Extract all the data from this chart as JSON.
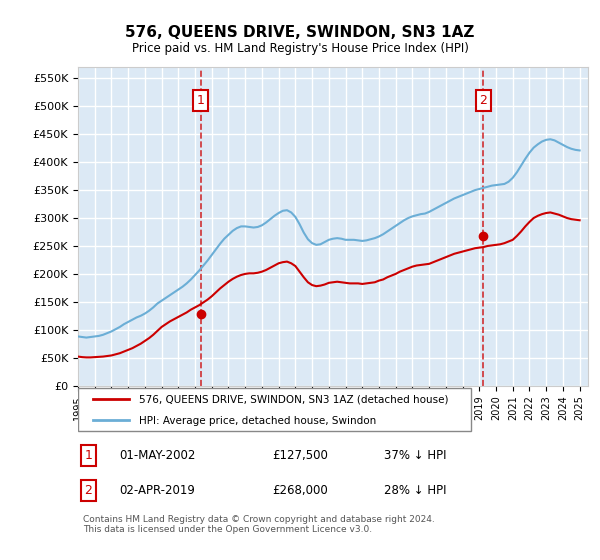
{
  "title": "576, QUEENS DRIVE, SWINDON, SN3 1AZ",
  "subtitle": "Price paid vs. HM Land Registry's House Price Index (HPI)",
  "ylabel_ticks": [
    "£0",
    "£50K",
    "£100K",
    "£150K",
    "£200K",
    "£250K",
    "£300K",
    "£350K",
    "£400K",
    "£450K",
    "£500K",
    "£550K"
  ],
  "ylim": [
    0,
    570000
  ],
  "xlim_start": 1995.0,
  "xlim_end": 2025.5,
  "xticks": [
    1995,
    1996,
    1997,
    1998,
    1999,
    2000,
    2001,
    2002,
    2003,
    2004,
    2005,
    2006,
    2007,
    2008,
    2009,
    2010,
    2011,
    2012,
    2013,
    2014,
    2015,
    2016,
    2017,
    2018,
    2019,
    2020,
    2021,
    2022,
    2023,
    2024,
    2025
  ],
  "hpi_color": "#6baed6",
  "price_color": "#cc0000",
  "dashed_line_color": "#cc0000",
  "background_color": "#dce9f5",
  "grid_color": "#ffffff",
  "annotation_box_color": "#cc0000",
  "sale1_x": 2002.33,
  "sale1_y": 127500,
  "sale1_label": "1",
  "sale2_x": 2019.25,
  "sale2_y": 268000,
  "sale2_label": "2",
  "legend_line1": "576, QUEENS DRIVE, SWINDON, SN3 1AZ (detached house)",
  "legend_line2": "HPI: Average price, detached house, Swindon",
  "table_row1": [
    "1",
    "01-MAY-2002",
    "£127,500",
    "37% ↓ HPI"
  ],
  "table_row2": [
    "2",
    "02-APR-2019",
    "£268,000",
    "28% ↓ HPI"
  ],
  "footer": "Contains HM Land Registry data © Crown copyright and database right 2024.\nThis data is licensed under the Open Government Licence v3.0.",
  "hpi_data_x": [
    1995.0,
    1995.25,
    1995.5,
    1995.75,
    1996.0,
    1996.25,
    1996.5,
    1996.75,
    1997.0,
    1997.25,
    1997.5,
    1997.75,
    1998.0,
    1998.25,
    1998.5,
    1998.75,
    1999.0,
    1999.25,
    1999.5,
    1999.75,
    2000.0,
    2000.25,
    2000.5,
    2000.75,
    2001.0,
    2001.25,
    2001.5,
    2001.75,
    2002.0,
    2002.25,
    2002.5,
    2002.75,
    2003.0,
    2003.25,
    2003.5,
    2003.75,
    2004.0,
    2004.25,
    2004.5,
    2004.75,
    2005.0,
    2005.25,
    2005.5,
    2005.75,
    2006.0,
    2006.25,
    2006.5,
    2006.75,
    2007.0,
    2007.25,
    2007.5,
    2007.75,
    2008.0,
    2008.25,
    2008.5,
    2008.75,
    2009.0,
    2009.25,
    2009.5,
    2009.75,
    2010.0,
    2010.25,
    2010.5,
    2010.75,
    2011.0,
    2011.25,
    2011.5,
    2011.75,
    2012.0,
    2012.25,
    2012.5,
    2012.75,
    2013.0,
    2013.25,
    2013.5,
    2013.75,
    2014.0,
    2014.25,
    2014.5,
    2014.75,
    2015.0,
    2015.25,
    2015.5,
    2015.75,
    2016.0,
    2016.25,
    2016.5,
    2016.75,
    2017.0,
    2017.25,
    2017.5,
    2017.75,
    2018.0,
    2018.25,
    2018.5,
    2018.75,
    2019.0,
    2019.25,
    2019.5,
    2019.75,
    2020.0,
    2020.25,
    2020.5,
    2020.75,
    2021.0,
    2021.25,
    2021.5,
    2021.75,
    2022.0,
    2022.25,
    2022.5,
    2022.75,
    2023.0,
    2023.25,
    2023.5,
    2023.75,
    2024.0,
    2024.25,
    2024.5,
    2024.75,
    2025.0
  ],
  "hpi_data_y": [
    88000,
    87000,
    86000,
    87000,
    88000,
    89000,
    91000,
    94000,
    97000,
    101000,
    105000,
    110000,
    114000,
    118000,
    122000,
    125000,
    129000,
    134000,
    140000,
    147000,
    152000,
    157000,
    162000,
    167000,
    172000,
    177000,
    183000,
    190000,
    198000,
    206000,
    215000,
    224000,
    234000,
    244000,
    254000,
    263000,
    270000,
    277000,
    282000,
    285000,
    285000,
    284000,
    283000,
    284000,
    287000,
    292000,
    298000,
    304000,
    309000,
    313000,
    314000,
    310000,
    302000,
    289000,
    274000,
    262000,
    255000,
    252000,
    253000,
    257000,
    261000,
    263000,
    264000,
    263000,
    261000,
    261000,
    261000,
    260000,
    259000,
    260000,
    262000,
    264000,
    267000,
    271000,
    276000,
    281000,
    286000,
    291000,
    296000,
    300000,
    303000,
    305000,
    307000,
    308000,
    311000,
    315000,
    319000,
    323000,
    327000,
    331000,
    335000,
    338000,
    341000,
    344000,
    347000,
    350000,
    352000,
    354000,
    356000,
    358000,
    359000,
    360000,
    361000,
    365000,
    372000,
    382000,
    394000,
    406000,
    417000,
    426000,
    432000,
    437000,
    440000,
    441000,
    439000,
    435000,
    431000,
    427000,
    424000,
    422000,
    421000
  ],
  "price_data_x": [
    1995.0,
    1995.25,
    1995.5,
    1995.75,
    1996.0,
    1996.25,
    1996.5,
    1996.75,
    1997.0,
    1997.25,
    1997.5,
    1997.75,
    1998.0,
    1998.25,
    1998.5,
    1998.75,
    1999.0,
    1999.25,
    1999.5,
    1999.75,
    2000.0,
    2000.25,
    2000.5,
    2000.75,
    2001.0,
    2001.25,
    2001.5,
    2001.75,
    2002.0,
    2002.25,
    2002.5,
    2002.75,
    2003.0,
    2003.25,
    2003.5,
    2003.75,
    2004.0,
    2004.25,
    2004.5,
    2004.75,
    2005.0,
    2005.25,
    2005.5,
    2005.75,
    2006.0,
    2006.25,
    2006.5,
    2006.75,
    2007.0,
    2007.25,
    2007.5,
    2007.75,
    2008.0,
    2008.25,
    2008.5,
    2008.75,
    2009.0,
    2009.25,
    2009.5,
    2009.75,
    2010.0,
    2010.25,
    2010.5,
    2010.75,
    2011.0,
    2011.25,
    2011.5,
    2011.75,
    2012.0,
    2012.25,
    2012.5,
    2012.75,
    2013.0,
    2013.25,
    2013.5,
    2013.75,
    2014.0,
    2014.25,
    2014.5,
    2014.75,
    2015.0,
    2015.25,
    2015.5,
    2015.75,
    2016.0,
    2016.25,
    2016.5,
    2016.75,
    2017.0,
    2017.25,
    2017.5,
    2017.75,
    2018.0,
    2018.25,
    2018.5,
    2018.75,
    2019.0,
    2019.25,
    2019.5,
    2019.75,
    2020.0,
    2020.25,
    2020.5,
    2020.75,
    2021.0,
    2021.25,
    2021.5,
    2021.75,
    2022.0,
    2022.25,
    2022.5,
    2022.75,
    2023.0,
    2023.25,
    2023.5,
    2023.75,
    2024.0,
    2024.25,
    2024.5,
    2024.75,
    2025.0
  ],
  "price_data_y": [
    52000,
    51000,
    50500,
    50500,
    51000,
    51500,
    52000,
    53000,
    54000,
    56000,
    58000,
    61000,
    64000,
    67000,
    71000,
    75000,
    80000,
    85000,
    91000,
    98000,
    105000,
    110000,
    115000,
    119000,
    123000,
    127000,
    131000,
    136000,
    140000,
    144000,
    149000,
    154000,
    160000,
    167000,
    174000,
    180000,
    186000,
    191000,
    195000,
    198000,
    200000,
    201000,
    201000,
    202000,
    204000,
    207000,
    211000,
    215000,
    219000,
    221000,
    222000,
    219000,
    214000,
    204000,
    194000,
    185000,
    180000,
    178000,
    179000,
    181000,
    184000,
    185000,
    186000,
    185000,
    184000,
    183000,
    183000,
    183000,
    182000,
    183000,
    184000,
    185000,
    188000,
    190000,
    194000,
    197000,
    200000,
    204000,
    207000,
    210000,
    213000,
    215000,
    216000,
    217000,
    218000,
    221000,
    224000,
    227000,
    230000,
    233000,
    236000,
    238000,
    240000,
    242000,
    244000,
    246000,
    247000,
    248000,
    250000,
    251000,
    252000,
    253000,
    255000,
    258000,
    261000,
    268000,
    276000,
    285000,
    293000,
    300000,
    304000,
    307000,
    309000,
    310000,
    308000,
    306000,
    303000,
    300000,
    298000,
    297000,
    296000
  ]
}
